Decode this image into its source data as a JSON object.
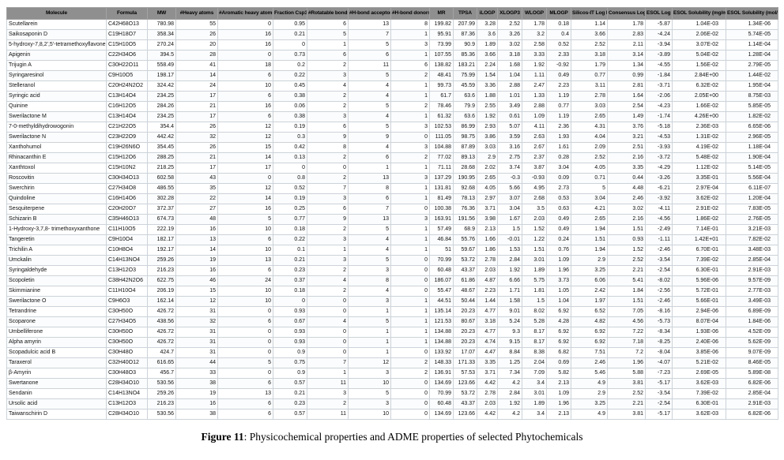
{
  "colors": {
    "header_bg": "#8f8f8f",
    "grid_border": "#ccd3d9",
    "header_text": "#000000"
  },
  "caption": {
    "label": "Figure 11",
    "rest": ": Physicochemical properties and ADME properties of selected Phytochemicals"
  },
  "table": {
    "columns": [
      "Molecule",
      "Formula",
      "MW",
      "#Heavy atoms",
      "#Aromatic heavy atoms",
      "Fraction Csp3",
      "#Rotatable bonds",
      "#H-bond acceptors",
      "#H-bond donors",
      "MR",
      "TPSA",
      "iLOGP",
      "XLOGP3",
      "WLOGP",
      "MLOGP",
      "Silicos-IT Log P",
      "Consensus Log P",
      "ESOL Log S",
      "ESOL Solubility (mg/ml)",
      "ESOL Solubility (mol/l)"
    ],
    "rows": [
      [
        "Scutellarein",
        "C42H68O13",
        "780.98",
        "55",
        "0",
        "0.95",
        "6",
        "13",
        "8",
        "199.82",
        "207.99",
        "3.28",
        "2.52",
        "1.78",
        "0.18",
        "1.14",
        "1.78",
        "-5.87",
        "1.04E-03",
        "1.34E-06"
      ],
      [
        "Saikosaponin D",
        "C19H18O7",
        "358.34",
        "26",
        "16",
        "0.21",
        "5",
        "7",
        "1",
        "95.91",
        "87.36",
        "3.6",
        "3.26",
        "3.2",
        "0.4",
        "3.66",
        "2.83",
        "-4.24",
        "2.06E-02",
        "5.74E-05"
      ],
      [
        "5-hydroxy-7,8,2',5'-tetramethoxyflavone",
        "C15H10O5",
        "270.24",
        "20",
        "16",
        "0",
        "1",
        "5",
        "3",
        "73.99",
        "90.9",
        "1.89",
        "3.02",
        "2.58",
        "0.52",
        "2.52",
        "2.11",
        "-3.94",
        "3.07E-02",
        "1.14E-04"
      ],
      [
        "Apigenin",
        "C22H34O6",
        "394.5",
        "28",
        "0",
        "0.73",
        "6",
        "6",
        "1",
        "107.55",
        "85.36",
        "3.66",
        "3.18",
        "3.33",
        "2.33",
        "3.18",
        "3.14",
        "-3.89",
        "5.04E-02",
        "1.28E-04"
      ],
      [
        "Trijugin A",
        "C30H22O11",
        "558.49",
        "41",
        "18",
        "0.2",
        "2",
        "11",
        "6",
        "138.82",
        "183.21",
        "2.24",
        "1.68",
        "1.92",
        "-0.92",
        "1.79",
        "1.34",
        "-4.55",
        "1.56E-02",
        "2.79E-05"
      ],
      [
        "Syringaresinol",
        "C9H10O5",
        "198.17",
        "14",
        "6",
        "0.22",
        "3",
        "5",
        "2",
        "48.41",
        "75.99",
        "1.54",
        "1.04",
        "1.11",
        "0.49",
        "0.77",
        "0.99",
        "-1.84",
        "2.84E+00",
        "1.44E-02"
      ],
      [
        "Stelleranol",
        "C20H24N2O2",
        "324.42",
        "24",
        "10",
        "0.45",
        "4",
        "4",
        "1",
        "99.73",
        "45.59",
        "3.36",
        "2.88",
        "2.47",
        "2.23",
        "3.11",
        "2.81",
        "-3.71",
        "6.32E-02",
        "1.95E-04"
      ],
      [
        "Syringic acid",
        "C13H14O4",
        "234.25",
        "17",
        "6",
        "0.38",
        "2",
        "4",
        "1",
        "61.7",
        "63.6",
        "1.88",
        "1.01",
        "1.33",
        "1.19",
        "2.78",
        "1.64",
        "-2.06",
        "2.05E+00",
        "8.75E-03"
      ],
      [
        "Quinine",
        "C16H12O5",
        "284.26",
        "21",
        "16",
        "0.06",
        "2",
        "5",
        "2",
        "78.46",
        "79.9",
        "2.55",
        "3.49",
        "2.88",
        "0.77",
        "3.03",
        "2.54",
        "-4.23",
        "1.66E-02",
        "5.85E-05"
      ],
      [
        "Swerilactone M",
        "C13H14O4",
        "234.25",
        "17",
        "6",
        "0.38",
        "3",
        "4",
        "1",
        "61.32",
        "63.6",
        "1.92",
        "0.61",
        "1.09",
        "1.19",
        "2.65",
        "1.49",
        "-1.74",
        "4.26E+00",
        "1.82E-02"
      ],
      [
        "7-0-methyldihydrowogonin",
        "C21H22O5",
        "354.4",
        "26",
        "12",
        "0.19",
        "6",
        "5",
        "3",
        "102.53",
        "86.99",
        "2.93",
        "5.07",
        "4.11",
        "2.36",
        "4.31",
        "3.76",
        "-5.18",
        "2.36E-03",
        "6.65E-06"
      ],
      [
        "Swerilactone N",
        "C23H22O9",
        "442.42",
        "32",
        "12",
        "0.3",
        "9",
        "9",
        "0",
        "111.05",
        "98.75",
        "3.86",
        "3.59",
        "2.63",
        "1.93",
        "4.04",
        "3.21",
        "-4.53",
        "1.31E-02",
        "2.96E-05"
      ],
      [
        "Xanthohumol",
        "C19H26N6O",
        "354.45",
        "26",
        "15",
        "0.42",
        "8",
        "4",
        "3",
        "104.88",
        "87.89",
        "3.03",
        "3.16",
        "2.67",
        "1.61",
        "2.09",
        "2.51",
        "-3.93",
        "4.19E-02",
        "1.18E-04"
      ],
      [
        "Rhinacanthin E",
        "C15H12O6",
        "288.25",
        "21",
        "14",
        "0.13",
        "2",
        "6",
        "2",
        "77.02",
        "89.13",
        "2.9",
        "2.75",
        "2.37",
        "0.28",
        "2.52",
        "2.16",
        "-3.72",
        "5.48E-02",
        "1.90E-04"
      ],
      [
        "Xanthtoxol",
        "C15H10N2",
        "218.25",
        "17",
        "17",
        "0",
        "0",
        "1",
        "1",
        "71.11",
        "28.68",
        "2.02",
        "3.74",
        "3.87",
        "3.04",
        "4.05",
        "3.35",
        "-4.29",
        "1.12E-02",
        "5.14E-05"
      ],
      [
        "Roscovitin",
        "C30H34O13",
        "602.58",
        "43",
        "0",
        "0.8",
        "2",
        "13",
        "3",
        "137.29",
        "190.95",
        "2.65",
        "-0.3",
        "-0.93",
        "0.09",
        "0.71",
        "0.44",
        "-3.26",
        "3.35E-01",
        "5.56E-04"
      ],
      [
        "Swerchirin",
        "C27H34O8",
        "486.55",
        "35",
        "12",
        "0.52",
        "7",
        "8",
        "1",
        "131.81",
        "92.68",
        "4.05",
        "5.66",
        "4.95",
        "2.73",
        "5",
        "4.48",
        "-6.21",
        "2.97E-04",
        "6.11E-07"
      ],
      [
        "Quindoline",
        "C16H14O6",
        "302.28",
        "22",
        "14",
        "0.19",
        "3",
        "6",
        "1",
        "81.49",
        "78.13",
        "2.97",
        "3.07",
        "2.68",
        "0.53",
        "3.04",
        "2.46",
        "-3.92",
        "3.62E-02",
        "1.20E-04"
      ],
      [
        "Sesquiterpene",
        "C20H20O7",
        "372.37",
        "27",
        "16",
        "0.25",
        "6",
        "7",
        "0",
        "100.38",
        "76.36",
        "3.71",
        "3.04",
        "3.5",
        "0.63",
        "4.21",
        "3.02",
        "-4.11",
        "2.91E-02",
        "7.83E-05"
      ],
      [
        "Schizarin B",
        "C35H46O13",
        "674.73",
        "48",
        "5",
        "0.77",
        "9",
        "13",
        "3",
        "163.91",
        "191.56",
        "3.98",
        "1.67",
        "2.03",
        "0.49",
        "2.65",
        "2.16",
        "-4.56",
        "1.86E-02",
        "2.76E-05"
      ],
      [
        "1-Hydroxy-3,7,8- trimethoxyxanthone",
        "C11H10O5",
        "222.19",
        "16",
        "10",
        "0.18",
        "2",
        "5",
        "1",
        "57.49",
        "68.9",
        "2.13",
        "1.5",
        "1.52",
        "0.49",
        "1.94",
        "1.51",
        "-2.49",
        "7.14E-01",
        "3.21E-03"
      ],
      [
        "Tangeretin",
        "C9H10O4",
        "182.17",
        "13",
        "6",
        "0.22",
        "3",
        "4",
        "1",
        "46.84",
        "55.76",
        "1.66",
        "-0.01",
        "1.22",
        "0.24",
        "1.51",
        "0.93",
        "-1.11",
        "1.42E+01",
        "7.82E-02"
      ],
      [
        "Trichilin A",
        "C10H8O4",
        "192.17",
        "14",
        "10",
        "0.1",
        "1",
        "4",
        "1",
        "51",
        "59.67",
        "1.86",
        "1.53",
        "1.51",
        "0.76",
        "1.94",
        "1.52",
        "-2.46",
        "6.70E-01",
        "3.48E-03"
      ],
      [
        "Umckalin",
        "C14H13NO4",
        "259.26",
        "19",
        "13",
        "0.21",
        "3",
        "5",
        "0",
        "70.99",
        "53.72",
        "2.78",
        "2.84",
        "3.01",
        "1.09",
        "2.9",
        "2.52",
        "-3.54",
        "7.39E-02",
        "2.85E-04"
      ],
      [
        "Syringaldehyde",
        "C13H12O3",
        "216.23",
        "16",
        "6",
        "0.23",
        "2",
        "3",
        "0",
        "60.48",
        "43.37",
        "2.03",
        "1.92",
        "1.89",
        "1.96",
        "3.25",
        "2.21",
        "-2.54",
        "6.30E-01",
        "2.91E-03"
      ],
      [
        "Scopoletin",
        "C38H42N2O6",
        "622.75",
        "46",
        "24",
        "0.37",
        "4",
        "8",
        "0",
        "186.07",
        "61.86",
        "4.87",
        "6.66",
        "5.75",
        "3.73",
        "6.06",
        "5.41",
        "-8.02",
        "5.96E-06",
        "9.57E-09"
      ],
      [
        "Skimmianine",
        "C11H10O4",
        "206.19",
        "15",
        "10",
        "0.18",
        "2",
        "4",
        "0",
        "55.47",
        "48.67",
        "2.23",
        "1.71",
        "1.81",
        "1.05",
        "2.42",
        "1.84",
        "-2.56",
        "5.72E-01",
        "2.77E-03"
      ],
      [
        "Swerilactone O",
        "C9H6O3",
        "162.14",
        "12",
        "10",
        "0",
        "0",
        "3",
        "1",
        "44.51",
        "50.44",
        "1.44",
        "1.58",
        "1.5",
        "1.04",
        "1.97",
        "1.51",
        "-2.46",
        "5.66E-01",
        "3.49E-03"
      ],
      [
        "Tetrandrine",
        "C30H50O",
        "426.72",
        "31",
        "0",
        "0.93",
        "0",
        "1",
        "1",
        "135.14",
        "20.23",
        "4.77",
        "9.01",
        "8.02",
        "6.92",
        "6.52",
        "7.05",
        "-8.16",
        "2.94E-06",
        "6.89E-09"
      ],
      [
        "Scoparone",
        "C27H34O5",
        "438.56",
        "32",
        "6",
        "0.67",
        "4",
        "5",
        "1",
        "121.53",
        "80.67",
        "3.18",
        "5.24",
        "5.28",
        "4.28",
        "4.82",
        "4.56",
        "-5.73",
        "8.07E-04",
        "1.84E-06"
      ],
      [
        "Umbelliferone",
        "C30H50O",
        "426.72",
        "31",
        "0",
        "0.93",
        "0",
        "1",
        "1",
        "134.88",
        "20.23",
        "4.77",
        "9.3",
        "8.17",
        "6.92",
        "6.92",
        "7.22",
        "-8.34",
        "1.93E-06",
        "4.52E-09"
      ],
      [
        "Alpha amyrin",
        "C30H50O",
        "426.72",
        "31",
        "0",
        "0.93",
        "0",
        "1",
        "1",
        "134.88",
        "20.23",
        "4.74",
        "9.15",
        "8.17",
        "6.92",
        "6.92",
        "7.18",
        "-8.25",
        "2.40E-06",
        "5.62E-09"
      ],
      [
        "Scopadulcic acid B",
        "C30H48O",
        "424.7",
        "31",
        "0",
        "0.9",
        "0",
        "1",
        "0",
        "133.92",
        "17.07",
        "4.47",
        "8.84",
        "8.38",
        "6.82",
        "7.51",
        "7.2",
        "-8.04",
        "3.85E-06",
        "9.07E-09"
      ],
      [
        "Taraxerol",
        "C32H40O12",
        "616.65",
        "44",
        "5",
        "0.75",
        "7",
        "12",
        "2",
        "148.33",
        "171.33",
        "3.35",
        "1.25",
        "2.04",
        "0.69",
        "2.46",
        "1.96",
        "-4.07",
        "5.21E-02",
        "8.46E-05"
      ],
      [
        "β-Amyrin",
        "C30H48O3",
        "456.7",
        "33",
        "0",
        "0.9",
        "1",
        "3",
        "2",
        "136.91",
        "57.53",
        "3.71",
        "7.34",
        "7.09",
        "5.82",
        "5.46",
        "5.88",
        "-7.23",
        "2.69E-05",
        "5.89E-08"
      ],
      [
        "Swertanone",
        "C28H34O10",
        "530.56",
        "38",
        "6",
        "0.57",
        "11",
        "10",
        "0",
        "134.69",
        "123.66",
        "4.42",
        "4.2",
        "3.4",
        "2.13",
        "4.9",
        "3.81",
        "-5.17",
        "3.62E-03",
        "6.82E-06"
      ],
      [
        "Sendanin",
        "C14H13NO4",
        "259.26",
        "19",
        "13",
        "0.21",
        "3",
        "5",
        "0",
        "70.99",
        "53.72",
        "2.78",
        "2.84",
        "3.01",
        "1.09",
        "2.9",
        "2.52",
        "-3.54",
        "7.39E-02",
        "2.85E-04"
      ],
      [
        "Ursolic acid",
        "C13H12O3",
        "216.23",
        "16",
        "6",
        "0.23",
        "2",
        "3",
        "0",
        "60.48",
        "43.37",
        "2.03",
        "1.92",
        "1.89",
        "1.96",
        "3.25",
        "2.21",
        "-2.54",
        "6.30E-01",
        "2.91E-03"
      ],
      [
        "Taiwanschirin D",
        "C28H34O10",
        "530.56",
        "38",
        "6",
        "0.57",
        "11",
        "10",
        "0",
        "134.69",
        "123.66",
        "4.42",
        "4.2",
        "3.4",
        "2.13",
        "4.9",
        "3.81",
        "-5.17",
        "3.62E-03",
        "6.82E-06"
      ]
    ]
  }
}
